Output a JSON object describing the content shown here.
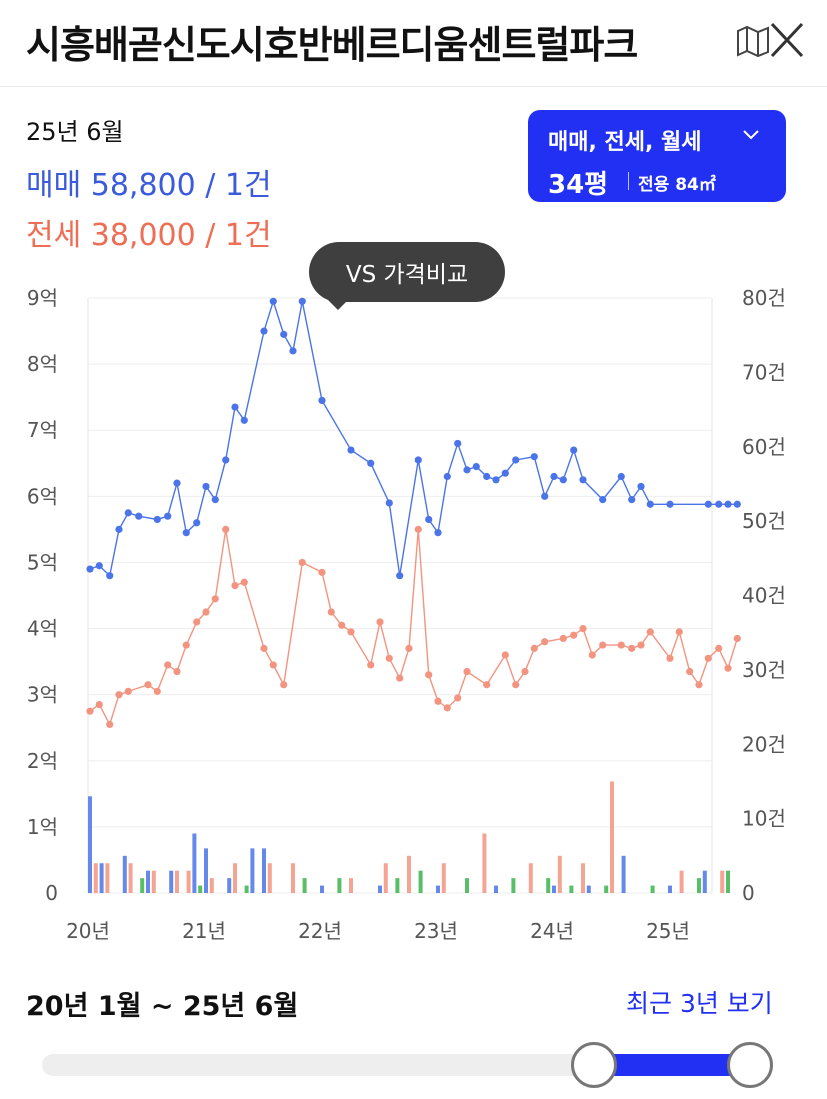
{
  "header": {
    "title": "시흥배곧신도시호반베르디움센트럴파크",
    "map_icon": "map-icon",
    "close_icon": "close-icon"
  },
  "summary": {
    "date": "25년 6월",
    "sale": "매매 58,800 / 1건",
    "jeonse": "전세 38,000 / 1건"
  },
  "filter": {
    "type_label": "매매, 전세, 월세",
    "pyeong": "34평",
    "area": "전용 84㎡"
  },
  "compare_label": "VS 가격비교",
  "colors": {
    "sale": "#3b5bdb",
    "jeonse": "#ee6e55",
    "monthly": "#3cb44b",
    "accent": "#2130f2"
  },
  "chart_data": {
    "type": "line",
    "y_left_ticks": [
      "0",
      "1억",
      "2억",
      "3억",
      "4억",
      "5억",
      "6억",
      "7억",
      "8억",
      "9억"
    ],
    "y_right_ticks": [
      "0",
      "10건",
      "20건",
      "30건",
      "40건",
      "50건",
      "60건",
      "70건",
      "80건"
    ],
    "x_ticks": [
      "20년",
      "21년",
      "22년",
      "23년",
      "24년",
      "25년"
    ],
    "ylim_left": [
      0,
      9
    ],
    "ylim_right": [
      0,
      80
    ],
    "series": [
      {
        "name": "매매",
        "color": "#4a74e8",
        "x": [
          0.0,
          0.08,
          0.17,
          0.25,
          0.33,
          0.42,
          0.58,
          0.67,
          0.75,
          0.83,
          0.92,
          1.0,
          1.08,
          1.17,
          1.25,
          1.33,
          1.5,
          1.58,
          1.67,
          1.75,
          1.83,
          2.0,
          2.25,
          2.42,
          2.58,
          2.67,
          2.83,
          2.92,
          3.0,
          3.08,
          3.17,
          3.25,
          3.33,
          3.42,
          3.5,
          3.58,
          3.67,
          3.83,
          3.92,
          4.0,
          4.08,
          4.17,
          4.25,
          4.42,
          4.58,
          4.67,
          4.75,
          4.83,
          5.0,
          5.33,
          5.42,
          5.5,
          5.58
        ],
        "y": [
          4.9,
          4.95,
          4.8,
          5.5,
          5.75,
          5.7,
          5.65,
          5.7,
          6.2,
          5.45,
          5.6,
          6.15,
          5.95,
          6.55,
          7.35,
          7.15,
          8.5,
          8.95,
          8.45,
          8.2,
          8.95,
          7.45,
          6.7,
          6.5,
          5.9,
          4.8,
          6.55,
          5.65,
          5.45,
          6.3,
          6.8,
          6.4,
          6.45,
          6.3,
          6.25,
          6.35,
          6.55,
          6.6,
          6.0,
          6.3,
          6.25,
          6.7,
          6.25,
          5.95,
          6.3,
          5.95,
          6.15,
          5.88,
          5.88,
          5.88,
          5.88,
          5.88,
          5.88
        ]
      },
      {
        "name": "전세",
        "color": "#f29480",
        "x": [
          0.0,
          0.08,
          0.17,
          0.25,
          0.33,
          0.5,
          0.58,
          0.67,
          0.75,
          0.83,
          0.92,
          1.0,
          1.08,
          1.17,
          1.25,
          1.33,
          1.5,
          1.58,
          1.67,
          1.83,
          2.0,
          2.08,
          2.17,
          2.25,
          2.42,
          2.5,
          2.58,
          2.67,
          2.75,
          2.83,
          2.92,
          3.0,
          3.08,
          3.17,
          3.25,
          3.42,
          3.58,
          3.67,
          3.75,
          3.83,
          3.92,
          4.08,
          4.17,
          4.25,
          4.33,
          4.42,
          4.58,
          4.67,
          4.75,
          4.83,
          5.0,
          5.08,
          5.17,
          5.25,
          5.33,
          5.42,
          5.5,
          5.58
        ],
        "y": [
          2.75,
          2.85,
          2.55,
          3.0,
          3.05,
          3.15,
          3.05,
          3.45,
          3.35,
          3.75,
          4.1,
          4.25,
          4.45,
          5.5,
          4.65,
          4.7,
          3.7,
          3.45,
          3.15,
          5.0,
          4.85,
          4.25,
          4.05,
          3.95,
          3.45,
          4.1,
          3.55,
          3.25,
          3.7,
          5.5,
          3.3,
          2.9,
          2.8,
          2.95,
          3.35,
          3.15,
          3.6,
          3.15,
          3.35,
          3.7,
          3.8,
          3.85,
          3.9,
          4.0,
          3.6,
          3.75,
          3.75,
          3.7,
          3.75,
          3.95,
          3.55,
          3.95,
          3.35,
          3.15,
          3.55,
          3.7,
          3.4,
          3.85
        ]
      }
    ],
    "volume_series": [
      {
        "name": "매매",
        "color": "#4a74e8",
        "x": [
          0.0,
          0.1,
          0.3,
          0.5,
          0.7,
          0.9,
          1.0,
          1.2,
          1.4,
          1.5,
          2.0,
          2.5,
          3.0,
          3.5,
          4.0,
          4.3,
          4.6,
          5.0,
          5.3
        ],
        "y": [
          13,
          4,
          5,
          3,
          3,
          8,
          6,
          2,
          6,
          6,
          1,
          1,
          1,
          1,
          1,
          1,
          5,
          1,
          3
        ]
      },
      {
        "name": "전세",
        "color": "#f29480",
        "x": [
          0.05,
          0.15,
          0.35,
          0.55,
          0.75,
          0.85,
          1.05,
          1.25,
          1.55,
          1.75,
          2.25,
          2.55,
          2.75,
          3.05,
          3.4,
          3.8,
          4.05,
          4.25,
          4.5,
          5.1,
          5.45
        ],
        "y": [
          4,
          4,
          4,
          3,
          3,
          3,
          2,
          4,
          4,
          4,
          2,
          4,
          5,
          4,
          8,
          4,
          5,
          4,
          15,
          3,
          3
        ]
      },
      {
        "name": "월세",
        "color": "#3cb44b",
        "x": [
          0.45,
          0.95,
          1.35,
          1.85,
          2.15,
          2.65,
          2.85,
          3.25,
          3.65,
          3.95,
          4.15,
          4.45,
          4.85,
          5.25,
          5.5
        ],
        "y": [
          2,
          1,
          1,
          2,
          2,
          2,
          3,
          2,
          2,
          2,
          1,
          1,
          1,
          2,
          3
        ]
      }
    ]
  },
  "range": {
    "label": "20년 1월 ~ 25년 6월",
    "recent_link": "최근 3년 보기",
    "start_fraction": 0.8,
    "end_fraction": 1.0
  }
}
